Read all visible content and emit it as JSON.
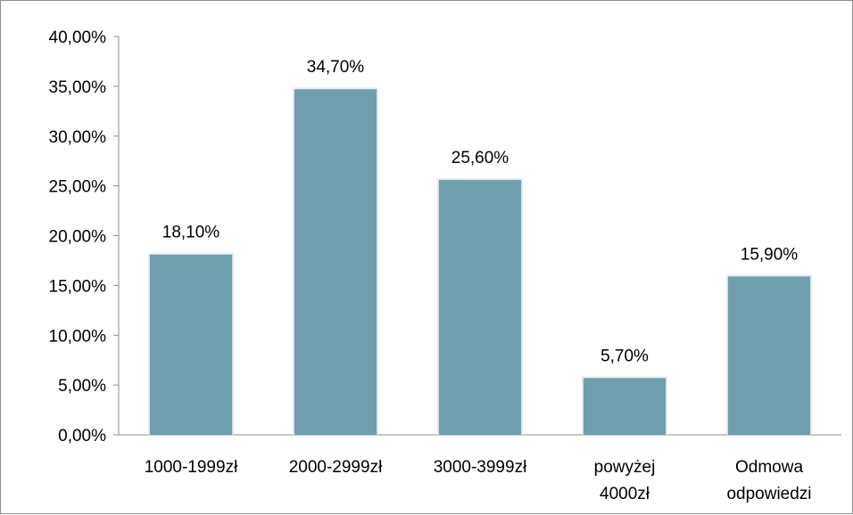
{
  "chart_data": {
    "type": "bar",
    "categories": [
      [
        "1000-1999zł"
      ],
      [
        "2000-2999zł"
      ],
      [
        "3000-3999zł"
      ],
      [
        "powyżej",
        "4000zł"
      ],
      [
        "Odmowa",
        "odpowiedzi"
      ]
    ],
    "values": [
      18.1,
      34.7,
      25.6,
      5.7,
      15.9
    ],
    "data_labels": [
      "18,10%",
      "34,70%",
      "25,60%",
      "5,70%",
      "15,90%"
    ],
    "y_ticks": [
      "0,00%",
      "5,00%",
      "10,00%",
      "15,00%",
      "20,00%",
      "25,00%",
      "30,00%",
      "35,00%",
      "40,00%"
    ],
    "ylim": [
      0,
      40
    ],
    "title": "",
    "xlabel": "",
    "ylabel": "",
    "grid": false,
    "legend": "none",
    "bar_color": "#6f9fae",
    "bar_edge_color": "#e6eef1"
  }
}
